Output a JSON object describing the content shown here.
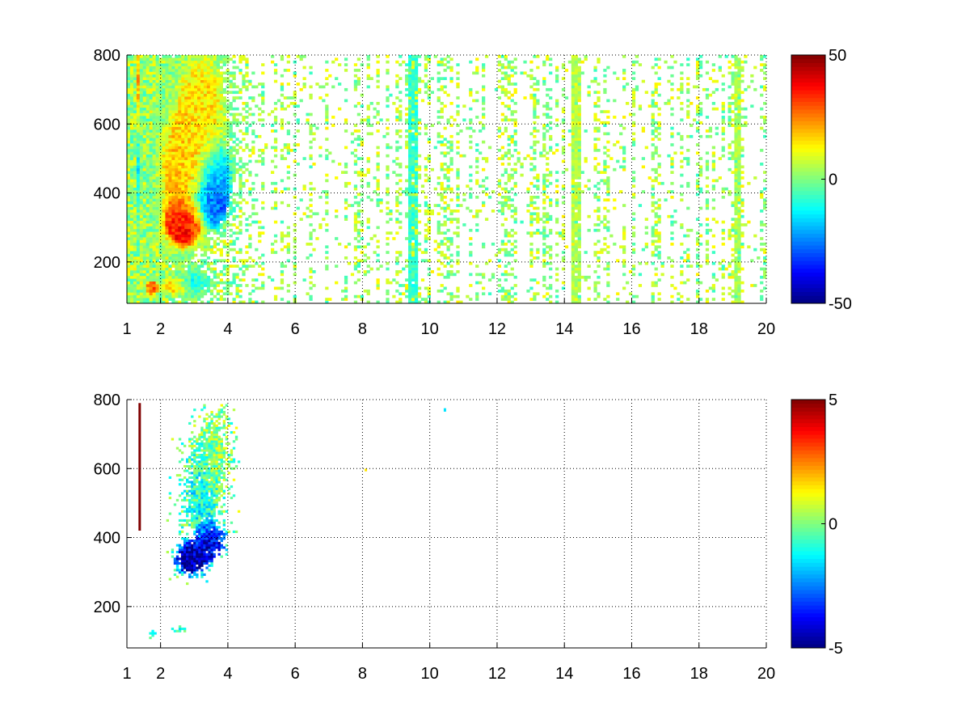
{
  "chart_data": [
    {
      "type": "heatmap",
      "title": "",
      "xlabel": "",
      "ylabel": "",
      "xlim": [
        1,
        20
      ],
      "ylim": [
        80,
        800
      ],
      "x_ticks": [
        1,
        2,
        4,
        6,
        8,
        10,
        12,
        14,
        16,
        18,
        20
      ],
      "x_tick_labels": [
        "1",
        "2",
        "4",
        "6",
        "8",
        "10",
        "12",
        "14",
        "16",
        "18",
        "20"
      ],
      "y_ticks": [
        200,
        400,
        600,
        800
      ],
      "y_tick_labels": [
        "200",
        "400",
        "600",
        "800"
      ],
      "grid": true,
      "colormap": "jet",
      "clim": [
        -50,
        50
      ],
      "colorbar_ticks": [
        -50,
        0,
        50
      ],
      "colorbar_tick_labels": [
        "-50",
        "0",
        "50"
      ],
      "features": [
        {
          "x": 2.7,
          "y": 310,
          "value": 42,
          "sx": 0.35,
          "sy": 40,
          "weight": 1.0
        },
        {
          "x": 2.6,
          "y": 450,
          "value": 18,
          "sx": 0.45,
          "sy": 110,
          "weight": 0.9
        },
        {
          "x": 3.2,
          "y": 650,
          "value": 15,
          "sx": 0.55,
          "sy": 120,
          "weight": 0.8
        },
        {
          "x": 3.5,
          "y": 370,
          "value": -32,
          "sx": 0.3,
          "sy": 45,
          "weight": 1.0
        },
        {
          "x": 3.7,
          "y": 450,
          "value": -22,
          "sx": 0.3,
          "sy": 60,
          "weight": 0.8
        },
        {
          "x": 1.75,
          "y": 125,
          "value": 30,
          "sx": 0.12,
          "sy": 14,
          "weight": 1.0
        },
        {
          "x": 2.4,
          "y": 130,
          "value": 18,
          "sx": 0.25,
          "sy": 18,
          "weight": 0.8
        },
        {
          "x": 3.0,
          "y": 140,
          "value": -12,
          "sx": 0.35,
          "sy": 25,
          "weight": 0.6
        },
        {
          "x": 1.35,
          "y": 690,
          "value": 25,
          "sx": 0.04,
          "sy": 90,
          "weight": 0.9
        },
        {
          "x": 1.35,
          "y": 500,
          "value": -18,
          "sx": 0.04,
          "sy": 120,
          "weight": 0.6
        }
      ],
      "stripes": [
        {
          "x": 9.45,
          "value": -12,
          "width": 0.12
        },
        {
          "x": 9.5,
          "value": -8,
          "width": 0.1
        },
        {
          "x": 14.35,
          "value": 5,
          "width": 0.15
        },
        {
          "x": 19.15,
          "value": 4,
          "width": 0.12
        }
      ]
    },
    {
      "type": "heatmap",
      "title": "",
      "xlabel": "",
      "ylabel": "",
      "xlim": [
        1,
        20
      ],
      "ylim": [
        80,
        800
      ],
      "x_ticks": [
        1,
        2,
        4,
        6,
        8,
        10,
        12,
        14,
        16,
        18,
        20
      ],
      "x_tick_labels": [
        "1",
        "2",
        "4",
        "6",
        "8",
        "10",
        "12",
        "14",
        "16",
        "18",
        "20"
      ],
      "y_ticks": [
        200,
        400,
        600,
        800
      ],
      "y_tick_labels": [
        "200",
        "400",
        "600",
        "800"
      ],
      "grid": true,
      "colormap": "jet",
      "clim": [
        -5,
        5
      ],
      "colorbar_ticks": [
        -5,
        0,
        5
      ],
      "colorbar_tick_labels": [
        "-5",
        "0",
        "5"
      ],
      "features": [
        {
          "x": 2.9,
          "y": 340,
          "value": -5,
          "sx": 0.3,
          "sy": 30,
          "weight": 1.0
        },
        {
          "x": 3.5,
          "y": 390,
          "value": -4.5,
          "sx": 0.25,
          "sy": 30,
          "weight": 1.0
        },
        {
          "x": 3.2,
          "y": 520,
          "value": -1,
          "sx": 0.35,
          "sy": 90,
          "weight": 0.8
        },
        {
          "x": 3.6,
          "y": 650,
          "value": 0.3,
          "sx": 0.3,
          "sy": 90,
          "weight": 0.7
        },
        {
          "x": 1.8,
          "y": 120,
          "value": -1.5,
          "sx": 0.08,
          "sy": 10,
          "weight": 0.9
        },
        {
          "x": 2.6,
          "y": 135,
          "value": -1.2,
          "sx": 0.2,
          "sy": 8,
          "weight": 0.5
        }
      ],
      "isolated": [
        {
          "x": 1.38,
          "y0": 420,
          "y1": 790,
          "value": 5
        },
        {
          "x": 10.45,
          "y0": 765,
          "y1": 775,
          "value": -1.5
        },
        {
          "x": 8.1,
          "y0": 592,
          "y1": 600,
          "value": 1.5
        }
      ]
    }
  ]
}
